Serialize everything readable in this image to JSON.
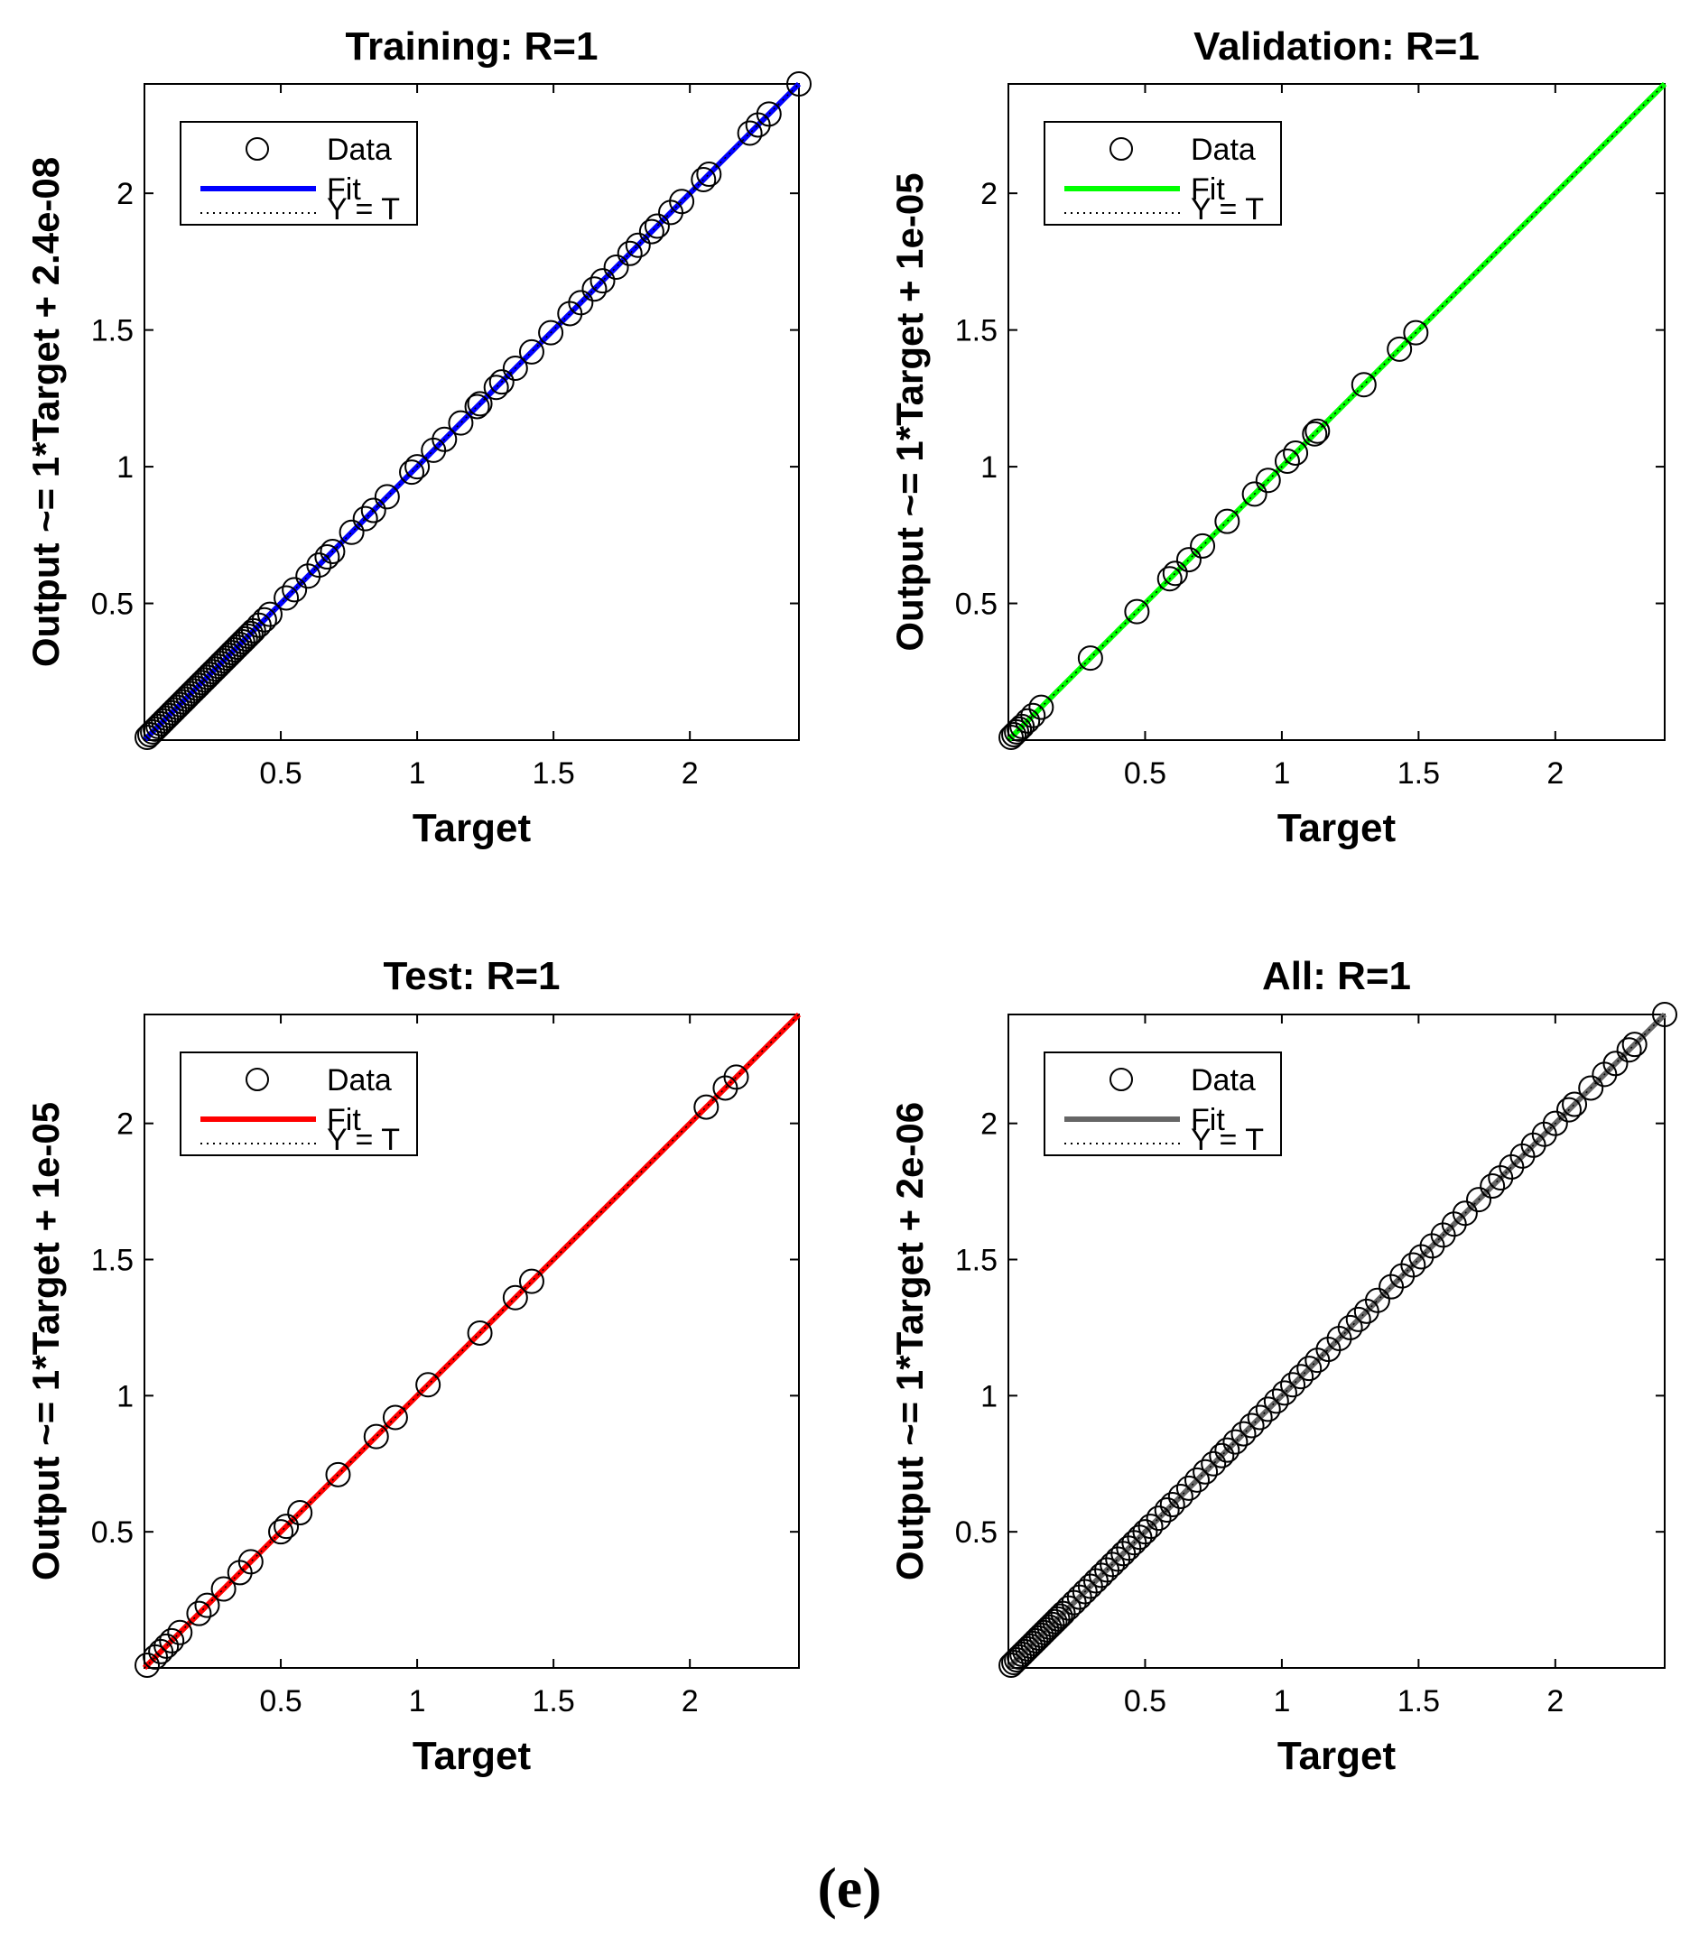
{
  "caption": "(e)",
  "colors": {
    "training": "#0000ff",
    "validation": "#00ff00",
    "test": "#ff0000",
    "all": "#666666",
    "marker": "#000000"
  },
  "chart_data": [
    {
      "type": "scatter",
      "title": "Training: R=1",
      "xlabel": "Target",
      "ylabel": "Output ~= 1*Target + 2.4e-08",
      "xlim": [
        0,
        2.4
      ],
      "ylim": [
        0,
        2.4
      ],
      "xticks": [
        "0.5",
        "1",
        "1.5",
        "2"
      ],
      "yticks": [
        "0.5",
        "1",
        "1.5",
        "2"
      ],
      "grid": false,
      "legend": {
        "placement": "top-left",
        "entries": [
          "Data",
          "Fit",
          "Y = T"
        ]
      },
      "fit_color": "#0000ff",
      "fit": {
        "slope": 1,
        "intercept": 2.4e-08
      },
      "x": [
        0.01,
        0.02,
        0.03,
        0.04,
        0.05,
        0.06,
        0.07,
        0.08,
        0.09,
        0.1,
        0.11,
        0.12,
        0.13,
        0.14,
        0.15,
        0.16,
        0.17,
        0.18,
        0.19,
        0.2,
        0.21,
        0.22,
        0.23,
        0.24,
        0.25,
        0.26,
        0.27,
        0.28,
        0.29,
        0.3,
        0.31,
        0.32,
        0.33,
        0.34,
        0.35,
        0.36,
        0.37,
        0.38,
        0.39,
        0.4,
        0.42,
        0.44,
        0.46,
        0.52,
        0.55,
        0.6,
        0.64,
        0.67,
        0.69,
        0.76,
        0.81,
        0.84,
        0.89,
        0.98,
        1.0,
        1.06,
        1.1,
        1.16,
        1.22,
        1.23,
        1.29,
        1.31,
        1.36,
        1.42,
        1.49,
        1.56,
        1.6,
        1.65,
        1.68,
        1.73,
        1.78,
        1.81,
        1.86,
        1.88,
        1.93,
        1.97,
        2.05,
        2.07,
        2.22,
        2.25,
        2.29,
        2.4
      ],
      "y": [
        0.01,
        0.02,
        0.03,
        0.04,
        0.05,
        0.06,
        0.07,
        0.08,
        0.09,
        0.1,
        0.11,
        0.12,
        0.13,
        0.14,
        0.15,
        0.16,
        0.17,
        0.18,
        0.19,
        0.2,
        0.21,
        0.22,
        0.23,
        0.24,
        0.25,
        0.26,
        0.27,
        0.28,
        0.29,
        0.3,
        0.31,
        0.32,
        0.33,
        0.34,
        0.35,
        0.36,
        0.37,
        0.38,
        0.39,
        0.4,
        0.42,
        0.44,
        0.46,
        0.52,
        0.55,
        0.6,
        0.64,
        0.67,
        0.69,
        0.76,
        0.81,
        0.84,
        0.89,
        0.98,
        1.0,
        1.06,
        1.1,
        1.16,
        1.22,
        1.23,
        1.29,
        1.31,
        1.36,
        1.42,
        1.49,
        1.56,
        1.6,
        1.65,
        1.68,
        1.73,
        1.78,
        1.81,
        1.86,
        1.88,
        1.93,
        1.97,
        2.05,
        2.07,
        2.22,
        2.25,
        2.29,
        2.4
      ]
    },
    {
      "type": "scatter",
      "title": "Validation: R=1",
      "xlabel": "Target",
      "ylabel": "Output ~= 1*Target + 1e-05",
      "xlim": [
        0,
        2.4
      ],
      "ylim": [
        0,
        2.4
      ],
      "xticks": [
        "0.5",
        "1",
        "1.5",
        "2"
      ],
      "yticks": [
        "0.5",
        "1",
        "1.5",
        "2"
      ],
      "grid": false,
      "legend": {
        "placement": "top-left",
        "entries": [
          "Data",
          "Fit",
          "Y = T"
        ]
      },
      "fit_color": "#00ff00",
      "fit": {
        "slope": 1,
        "intercept": 1e-05
      },
      "x": [
        0.01,
        0.02,
        0.03,
        0.04,
        0.05,
        0.07,
        0.09,
        0.12,
        0.3,
        0.47,
        0.59,
        0.61,
        0.66,
        0.71,
        0.8,
        0.9,
        0.95,
        1.02,
        1.05,
        1.12,
        1.13,
        1.3,
        1.43,
        1.49
      ],
      "y": [
        0.01,
        0.02,
        0.03,
        0.04,
        0.05,
        0.07,
        0.09,
        0.12,
        0.3,
        0.47,
        0.59,
        0.61,
        0.66,
        0.71,
        0.8,
        0.9,
        0.95,
        1.02,
        1.05,
        1.12,
        1.13,
        1.3,
        1.43,
        1.49
      ]
    },
    {
      "type": "scatter",
      "title": "Test: R=1",
      "xlabel": "Target",
      "ylabel": "Output ~= 1*Target + 1e-05",
      "xlim": [
        0,
        2.4
      ],
      "ylim": [
        0,
        2.4
      ],
      "xticks": [
        "0.5",
        "1",
        "1.5",
        "2"
      ],
      "yticks": [
        "0.5",
        "1",
        "1.5",
        "2"
      ],
      "grid": false,
      "legend": {
        "placement": "top-left",
        "entries": [
          "Data",
          "Fit",
          "Y = T"
        ]
      },
      "fit_color": "#ff0000",
      "fit": {
        "slope": 1,
        "intercept": 1e-05
      },
      "x": [
        0.01,
        0.04,
        0.06,
        0.08,
        0.1,
        0.13,
        0.2,
        0.23,
        0.29,
        0.35,
        0.39,
        0.5,
        0.52,
        0.57,
        0.71,
        0.85,
        0.92,
        1.04,
        1.23,
        1.36,
        1.42,
        2.06,
        2.13,
        2.17
      ],
      "y": [
        0.01,
        0.04,
        0.06,
        0.08,
        0.1,
        0.13,
        0.2,
        0.23,
        0.29,
        0.35,
        0.39,
        0.5,
        0.52,
        0.57,
        0.71,
        0.85,
        0.92,
        1.04,
        1.23,
        1.36,
        1.42,
        2.06,
        2.13,
        2.17
      ]
    },
    {
      "type": "scatter",
      "title": "All: R=1",
      "xlabel": "Target",
      "ylabel": "Output ~= 1*Target + 2e-06",
      "xlim": [
        0,
        2.4
      ],
      "ylim": [
        0,
        2.4
      ],
      "xticks": [
        "0.5",
        "1",
        "1.5",
        "2"
      ],
      "yticks": [
        "0.5",
        "1",
        "1.5",
        "2"
      ],
      "grid": false,
      "legend": {
        "placement": "top-left",
        "entries": [
          "Data",
          "Fit",
          "Y = T"
        ]
      },
      "fit_color": "#666666",
      "fit": {
        "slope": 1,
        "intercept": 2e-06
      },
      "x": [
        0.01,
        0.02,
        0.03,
        0.04,
        0.05,
        0.06,
        0.07,
        0.08,
        0.09,
        0.1,
        0.11,
        0.12,
        0.13,
        0.14,
        0.15,
        0.16,
        0.17,
        0.18,
        0.19,
        0.2,
        0.22,
        0.24,
        0.26,
        0.28,
        0.3,
        0.32,
        0.34,
        0.36,
        0.38,
        0.4,
        0.42,
        0.44,
        0.46,
        0.48,
        0.5,
        0.52,
        0.55,
        0.58,
        0.6,
        0.63,
        0.66,
        0.69,
        0.72,
        0.75,
        0.78,
        0.8,
        0.83,
        0.86,
        0.89,
        0.92,
        0.95,
        0.98,
        1.01,
        1.04,
        1.07,
        1.1,
        1.13,
        1.17,
        1.21,
        1.25,
        1.28,
        1.31,
        1.35,
        1.4,
        1.44,
        1.48,
        1.51,
        1.55,
        1.59,
        1.63,
        1.67,
        1.72,
        1.77,
        1.8,
        1.84,
        1.88,
        1.92,
        1.96,
        2.0,
        2.05,
        2.07,
        2.13,
        2.18,
        2.22,
        2.27,
        2.29,
        2.4
      ],
      "y": [
        0.01,
        0.02,
        0.03,
        0.04,
        0.05,
        0.06,
        0.07,
        0.08,
        0.09,
        0.1,
        0.11,
        0.12,
        0.13,
        0.14,
        0.15,
        0.16,
        0.17,
        0.18,
        0.19,
        0.2,
        0.22,
        0.24,
        0.26,
        0.28,
        0.3,
        0.32,
        0.34,
        0.36,
        0.38,
        0.4,
        0.42,
        0.44,
        0.46,
        0.48,
        0.5,
        0.52,
        0.55,
        0.58,
        0.6,
        0.63,
        0.66,
        0.69,
        0.72,
        0.75,
        0.78,
        0.8,
        0.83,
        0.86,
        0.89,
        0.92,
        0.95,
        0.98,
        1.01,
        1.04,
        1.07,
        1.1,
        1.13,
        1.17,
        1.21,
        1.25,
        1.28,
        1.31,
        1.35,
        1.4,
        1.44,
        1.48,
        1.51,
        1.55,
        1.59,
        1.63,
        1.67,
        1.72,
        1.77,
        1.8,
        1.84,
        1.88,
        1.92,
        1.96,
        2.0,
        2.05,
        2.07,
        2.13,
        2.18,
        2.22,
        2.27,
        2.29,
        2.4
      ]
    }
  ]
}
